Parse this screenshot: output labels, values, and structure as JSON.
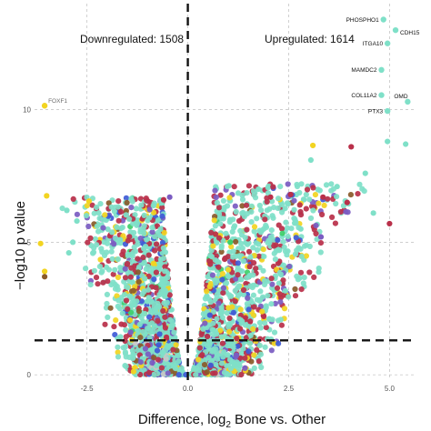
{
  "chart_data": {
    "type": "scatter",
    "title": "",
    "xlabel_main": "Difference, log",
    "xlabel_sub": "2",
    "xlabel_rest": " Bone vs. Other",
    "ylabel": "−log10 p value",
    "x_ticks": [
      "-2.5",
      "0.0",
      "2.5",
      "5.0"
    ],
    "y_ticks": [
      "0",
      "5",
      "10"
    ],
    "xlim": [
      -3.8,
      5.6
    ],
    "ylim": [
      -0.2,
      14.0
    ],
    "grid": true,
    "significance_threshold_y": 1.3,
    "center_line_x": 0.0,
    "annotations": {
      "downregulated": "Downregulated: 1508",
      "upregulated": "Upregulated: 1614"
    },
    "colors": [
      "#7fe0c8",
      "#b9304a",
      "#f2d421",
      "#7b5cc2",
      "#3f5bd6",
      "#c7c7c7",
      "#8a5a2b",
      "#3fcf6a"
    ],
    "labeled_points": [
      {
        "label": "PHOSPHO1",
        "x": 4.85,
        "y": 13.4,
        "color": "#7fe0c8"
      },
      {
        "label": "CDH15",
        "x": 5.15,
        "y": 13.0,
        "color": "#7fe0c8"
      },
      {
        "label": "ITGA10",
        "x": 4.95,
        "y": 12.5,
        "color": "#7fe0c8"
      },
      {
        "label": "MAMDC2",
        "x": 4.8,
        "y": 11.5,
        "color": "#7fe0c8"
      },
      {
        "label": "COL11A2",
        "x": 4.8,
        "y": 10.55,
        "color": "#7fe0c8"
      },
      {
        "label": "OMD",
        "x": 5.45,
        "y": 10.3,
        "color": "#7fe0c8"
      },
      {
        "label": "PTX3",
        "x": 4.95,
        "y": 9.95,
        "color": "#7fe0c8"
      },
      {
        "label": "FOXF1",
        "x": -3.55,
        "y": 10.15,
        "color": "#f2d421"
      }
    ],
    "outliers": [
      {
        "x": -3.5,
        "y": 6.75,
        "color": "#f2d421"
      },
      {
        "x": -3.0,
        "y": 6.2,
        "color": "#7fe0c8"
      },
      {
        "x": -2.75,
        "y": 5.8,
        "color": "#7fe0c8"
      },
      {
        "x": -3.65,
        "y": 4.95,
        "color": "#f2d421"
      },
      {
        "x": -3.55,
        "y": 3.9,
        "color": "#f2d421"
      },
      {
        "x": -3.55,
        "y": 3.7,
        "color": "#8a5a2b"
      },
      {
        "x": -2.95,
        "y": 4.6,
        "color": "#7fe0c8"
      },
      {
        "x": -2.85,
        "y": 5.0,
        "color": "#7fe0c8"
      },
      {
        "x": -2.45,
        "y": 6.55,
        "color": "#f2d421"
      },
      {
        "x": -0.6,
        "y": 6.6,
        "color": "#b9304a"
      },
      {
        "x": -0.45,
        "y": 6.7,
        "color": "#7b5cc2"
      },
      {
        "x": 4.95,
        "y": 8.8,
        "color": "#7fe0c8"
      },
      {
        "x": 5.4,
        "y": 8.7,
        "color": "#7fe0c8"
      },
      {
        "x": 3.1,
        "y": 8.65,
        "color": "#f2d421"
      },
      {
        "x": 3.05,
        "y": 8.1,
        "color": "#7fe0c8"
      },
      {
        "x": 4.05,
        "y": 8.6,
        "color": "#b9304a"
      },
      {
        "x": 4.4,
        "y": 7.6,
        "color": "#7fe0c8"
      },
      {
        "x": 3.7,
        "y": 7.1,
        "color": "#7fe0c8"
      },
      {
        "x": 3.95,
        "y": 6.5,
        "color": "#b9304a"
      },
      {
        "x": 3.35,
        "y": 6.7,
        "color": "#b9304a"
      },
      {
        "x": 4.6,
        "y": 6.1,
        "color": "#7fe0c8"
      },
      {
        "x": 5.0,
        "y": 5.7,
        "color": "#b9304a"
      },
      {
        "x": 2.05,
        "y": 6.7,
        "color": "#b9304a"
      },
      {
        "x": 2.55,
        "y": 6.8,
        "color": "#b9304a"
      },
      {
        "x": 1.75,
        "y": 7.0,
        "color": "#7fe0c8"
      },
      {
        "x": 3.3,
        "y": 5.2,
        "color": "#7b5cc2"
      },
      {
        "x": 1.05,
        "y": 5.0,
        "color": "#3fcf6a"
      },
      {
        "x": 2.8,
        "y": 5.5,
        "color": "#7fe0c8"
      }
    ]
  }
}
